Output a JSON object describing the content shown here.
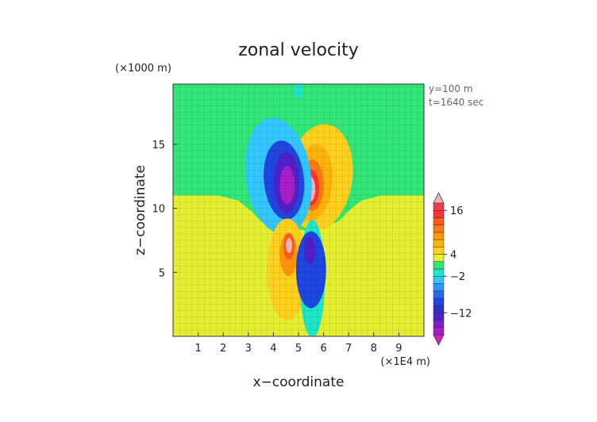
{
  "chart_data": {
    "type": "heatmap",
    "title": "zonal velocity",
    "xlabel": "x−coordinate",
    "ylabel": "z−coordinate",
    "x_unit": "(×1E4 m)",
    "y_unit": "(×1000 m)",
    "annotations": [
      "y=100  m",
      "t=1640  sec"
    ],
    "xlim": [
      0,
      10
    ],
    "ylim": [
      0,
      19.7
    ],
    "x_ticks": [
      1,
      2,
      3,
      4,
      5,
      6,
      7,
      8,
      9
    ],
    "y_ticks": [
      5,
      10,
      15
    ],
    "grid": true,
    "colorbar": {
      "levels": [
        -20,
        -18,
        -16,
        -14,
        -12,
        -10,
        -8,
        -6,
        -4,
        -2,
        0,
        2,
        4,
        6,
        8,
        10,
        12,
        14,
        16,
        18,
        20
      ],
      "colors": [
        "#d21ec8",
        "#a81ec8",
        "#7d1ec8",
        "#5020c8",
        "#2830d2",
        "#1e46e1",
        "#2864f0",
        "#3296ff",
        "#32c8ff",
        "#1ee6c8",
        "#32e678",
        "#e6f032",
        "#ffd21e",
        "#ffb40a",
        "#ff960a",
        "#ff7814",
        "#ff5a1e",
        "#ff3232",
        "#f03c50",
        "#f5b4b4"
      ],
      "tick_labels": [
        "16",
        "4",
        "−2",
        "−12"
      ],
      "tick_values": [
        16,
        4,
        -2,
        -12
      ]
    },
    "regions": [
      {
        "kind": "base",
        "value": 1
      },
      {
        "kind": "zone",
        "value": 3,
        "path": [
          [
            0,
            0
          ],
          [
            10,
            0
          ],
          [
            10,
            11
          ],
          [
            8.3,
            11
          ],
          [
            7.5,
            10.6
          ],
          [
            7,
            9.8
          ],
          [
            6.6,
            9
          ],
          [
            6,
            8.5
          ],
          [
            5.5,
            8.3
          ],
          [
            5,
            8.3
          ],
          [
            4.5,
            8.3
          ],
          [
            3.9,
            8.5
          ],
          [
            3.5,
            9
          ],
          [
            3.1,
            9.8
          ],
          [
            2.6,
            10.6
          ],
          [
            1.8,
            11
          ],
          [
            0,
            11
          ]
        ]
      },
      {
        "kind": "blob",
        "value": 5,
        "cx": 5.85,
        "cy": 12.4,
        "rx": 1.3,
        "ry": 4.2,
        "rot": 8
      },
      {
        "kind": "blob",
        "value": 7,
        "cx": 5.6,
        "cy": 12.0,
        "rx": 0.75,
        "ry": 3.0,
        "rot": 6
      },
      {
        "kind": "blob",
        "value": 11,
        "cx": 5.55,
        "cy": 11.8,
        "rx": 0.45,
        "ry": 2.0,
        "rot": 0
      },
      {
        "kind": "blob",
        "value": 14,
        "cx": 5.5,
        "cy": 11.6,
        "rx": 0.32,
        "ry": 1.4,
        "rot": 0
      },
      {
        "kind": "blob",
        "value": 19,
        "cx": 5.45,
        "cy": 11.5,
        "rx": 0.22,
        "ry": 1.0,
        "rot": 0
      },
      {
        "kind": "blob",
        "value": -3,
        "cx": 4.2,
        "cy": 12.5,
        "rx": 1.3,
        "ry": 4.6,
        "rot": -8
      },
      {
        "kind": "blob",
        "value": -10,
        "cx": 4.42,
        "cy": 12.2,
        "rx": 0.8,
        "ry": 3.1,
        "rot": -5
      },
      {
        "kind": "blob",
        "value": -13,
        "cx": 4.52,
        "cy": 12.0,
        "rx": 0.5,
        "ry": 2.4,
        "rot": 0
      },
      {
        "kind": "blob",
        "value": -17,
        "cx": 4.55,
        "cy": 11.8,
        "rx": 0.3,
        "ry": 1.5,
        "rot": 0
      },
      {
        "kind": "blob",
        "value": 5,
        "cx": 4.55,
        "cy": 5.2,
        "rx": 0.8,
        "ry": 4.0,
        "rot": 0
      },
      {
        "kind": "blob",
        "value": 9,
        "cx": 4.6,
        "cy": 6.4,
        "rx": 0.35,
        "ry": 1.7,
        "rot": 0
      },
      {
        "kind": "blob",
        "value": 13,
        "cx": 4.62,
        "cy": 7.0,
        "rx": 0.22,
        "ry": 1.0,
        "rot": 0
      },
      {
        "kind": "blob",
        "value": 19,
        "cx": 4.62,
        "cy": 7.1,
        "rx": 0.13,
        "ry": 0.6,
        "rot": 0
      },
      {
        "kind": "blob",
        "value": -1,
        "cx": 5.55,
        "cy": 4.5,
        "rx": 0.5,
        "ry": 4.6,
        "rot": 0
      },
      {
        "kind": "blob",
        "value": -9,
        "cx": 5.5,
        "cy": 5.2,
        "rx": 0.6,
        "ry": 3.0,
        "rot": 0
      },
      {
        "kind": "blob",
        "value": -13,
        "cx": 5.45,
        "cy": 6.7,
        "rx": 0.22,
        "ry": 1.1,
        "rot": 0
      },
      {
        "kind": "blob",
        "value": -1,
        "cx": 4.98,
        "cy": 19.2,
        "rx": 0.2,
        "ry": 0.6,
        "rot": 0
      }
    ]
  }
}
